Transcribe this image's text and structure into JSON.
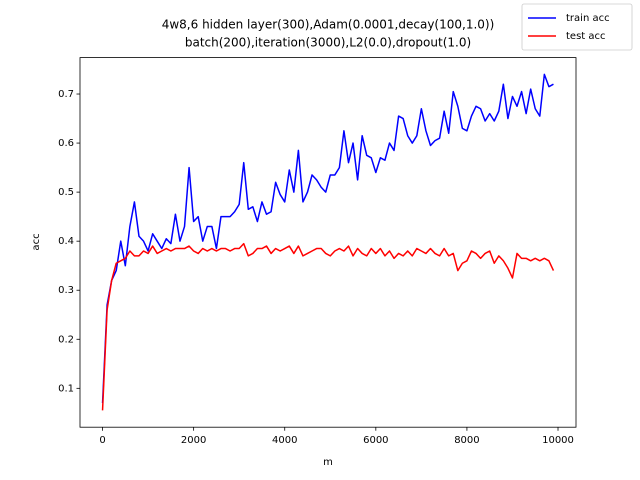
{
  "chart_data": {
    "type": "line",
    "title": [
      "4w8,6 hidden layer(300),Adam(0.0001,decay(100,1.0))",
      "batch(200),iteration(3000),L2(0.0),dropout(1.0)"
    ],
    "x_label": "m",
    "y_label": "acc",
    "x": [
      0,
      100,
      200,
      300,
      400,
      500,
      600,
      700,
      800,
      900,
      1000,
      1100,
      1200,
      1300,
      1400,
      1500,
      1600,
      1700,
      1800,
      1900,
      2000,
      2100,
      2200,
      2300,
      2400,
      2500,
      2600,
      2700,
      2800,
      2900,
      3000,
      3100,
      3200,
      3300,
      3400,
      3500,
      3600,
      3700,
      3800,
      3900,
      4000,
      4100,
      4200,
      4300,
      4400,
      4500,
      4600,
      4700,
      4800,
      4900,
      5000,
      5100,
      5200,
      5300,
      5400,
      5500,
      5600,
      5700,
      5800,
      5900,
      6000,
      6100,
      6200,
      6300,
      6400,
      6500,
      6600,
      6700,
      6800,
      6900,
      7000,
      7100,
      7200,
      7300,
      7400,
      7500,
      7600,
      7700,
      7800,
      7900,
      8000,
      8100,
      8200,
      8300,
      8400,
      8500,
      8600,
      8700,
      8800,
      8900,
      9000,
      9100,
      9200,
      9300,
      9400,
      9500,
      9600,
      9700,
      9800,
      9900
    ],
    "series": [
      {
        "name": "train acc",
        "color": "#0000ff",
        "values": [
          0.07,
          0.27,
          0.32,
          0.34,
          0.4,
          0.35,
          0.43,
          0.48,
          0.41,
          0.4,
          0.38,
          0.415,
          0.4,
          0.385,
          0.405,
          0.395,
          0.455,
          0.4,
          0.43,
          0.55,
          0.44,
          0.45,
          0.4,
          0.43,
          0.43,
          0.385,
          0.45,
          0.45,
          0.45,
          0.46,
          0.475,
          0.56,
          0.465,
          0.47,
          0.44,
          0.48,
          0.455,
          0.46,
          0.52,
          0.495,
          0.48,
          0.545,
          0.5,
          0.585,
          0.48,
          0.5,
          0.535,
          0.525,
          0.51,
          0.5,
          0.535,
          0.535,
          0.55,
          0.625,
          0.56,
          0.6,
          0.525,
          0.615,
          0.575,
          0.57,
          0.54,
          0.57,
          0.565,
          0.6,
          0.585,
          0.655,
          0.65,
          0.615,
          0.6,
          0.615,
          0.67,
          0.625,
          0.595,
          0.605,
          0.61,
          0.665,
          0.62,
          0.705,
          0.675,
          0.63,
          0.625,
          0.655,
          0.675,
          0.67,
          0.645,
          0.66,
          0.645,
          0.665,
          0.72,
          0.65,
          0.695,
          0.675,
          0.705,
          0.66,
          0.71,
          0.67,
          0.655,
          0.74,
          0.715,
          0.72
        ]
      },
      {
        "name": "test acc",
        "color": "#ff0000",
        "values": [
          0.055,
          0.26,
          0.32,
          0.355,
          0.36,
          0.365,
          0.38,
          0.37,
          0.37,
          0.38,
          0.375,
          0.39,
          0.375,
          0.38,
          0.385,
          0.38,
          0.385,
          0.385,
          0.385,
          0.39,
          0.38,
          0.375,
          0.385,
          0.38,
          0.385,
          0.38,
          0.385,
          0.385,
          0.38,
          0.385,
          0.385,
          0.395,
          0.37,
          0.375,
          0.385,
          0.385,
          0.39,
          0.375,
          0.385,
          0.38,
          0.385,
          0.39,
          0.375,
          0.39,
          0.37,
          0.375,
          0.38,
          0.385,
          0.385,
          0.375,
          0.37,
          0.38,
          0.385,
          0.38,
          0.39,
          0.37,
          0.385,
          0.375,
          0.37,
          0.385,
          0.375,
          0.385,
          0.37,
          0.38,
          0.365,
          0.375,
          0.37,
          0.38,
          0.37,
          0.385,
          0.38,
          0.375,
          0.385,
          0.375,
          0.37,
          0.385,
          0.37,
          0.375,
          0.34,
          0.355,
          0.36,
          0.38,
          0.375,
          0.365,
          0.375,
          0.38,
          0.355,
          0.37,
          0.36,
          0.345,
          0.325,
          0.375,
          0.365,
          0.365,
          0.36,
          0.365,
          0.36,
          0.365,
          0.36,
          0.34
        ]
      }
    ],
    "xlim": [
      -495,
      10395
    ],
    "ylim": [
      0.02075,
      0.77425
    ],
    "xticks": [
      0,
      2000,
      4000,
      6000,
      8000,
      10000
    ],
    "yticks": [
      0.1,
      0.2,
      0.3,
      0.4,
      0.5,
      0.6,
      0.7
    ],
    "legend": "upper right"
  }
}
